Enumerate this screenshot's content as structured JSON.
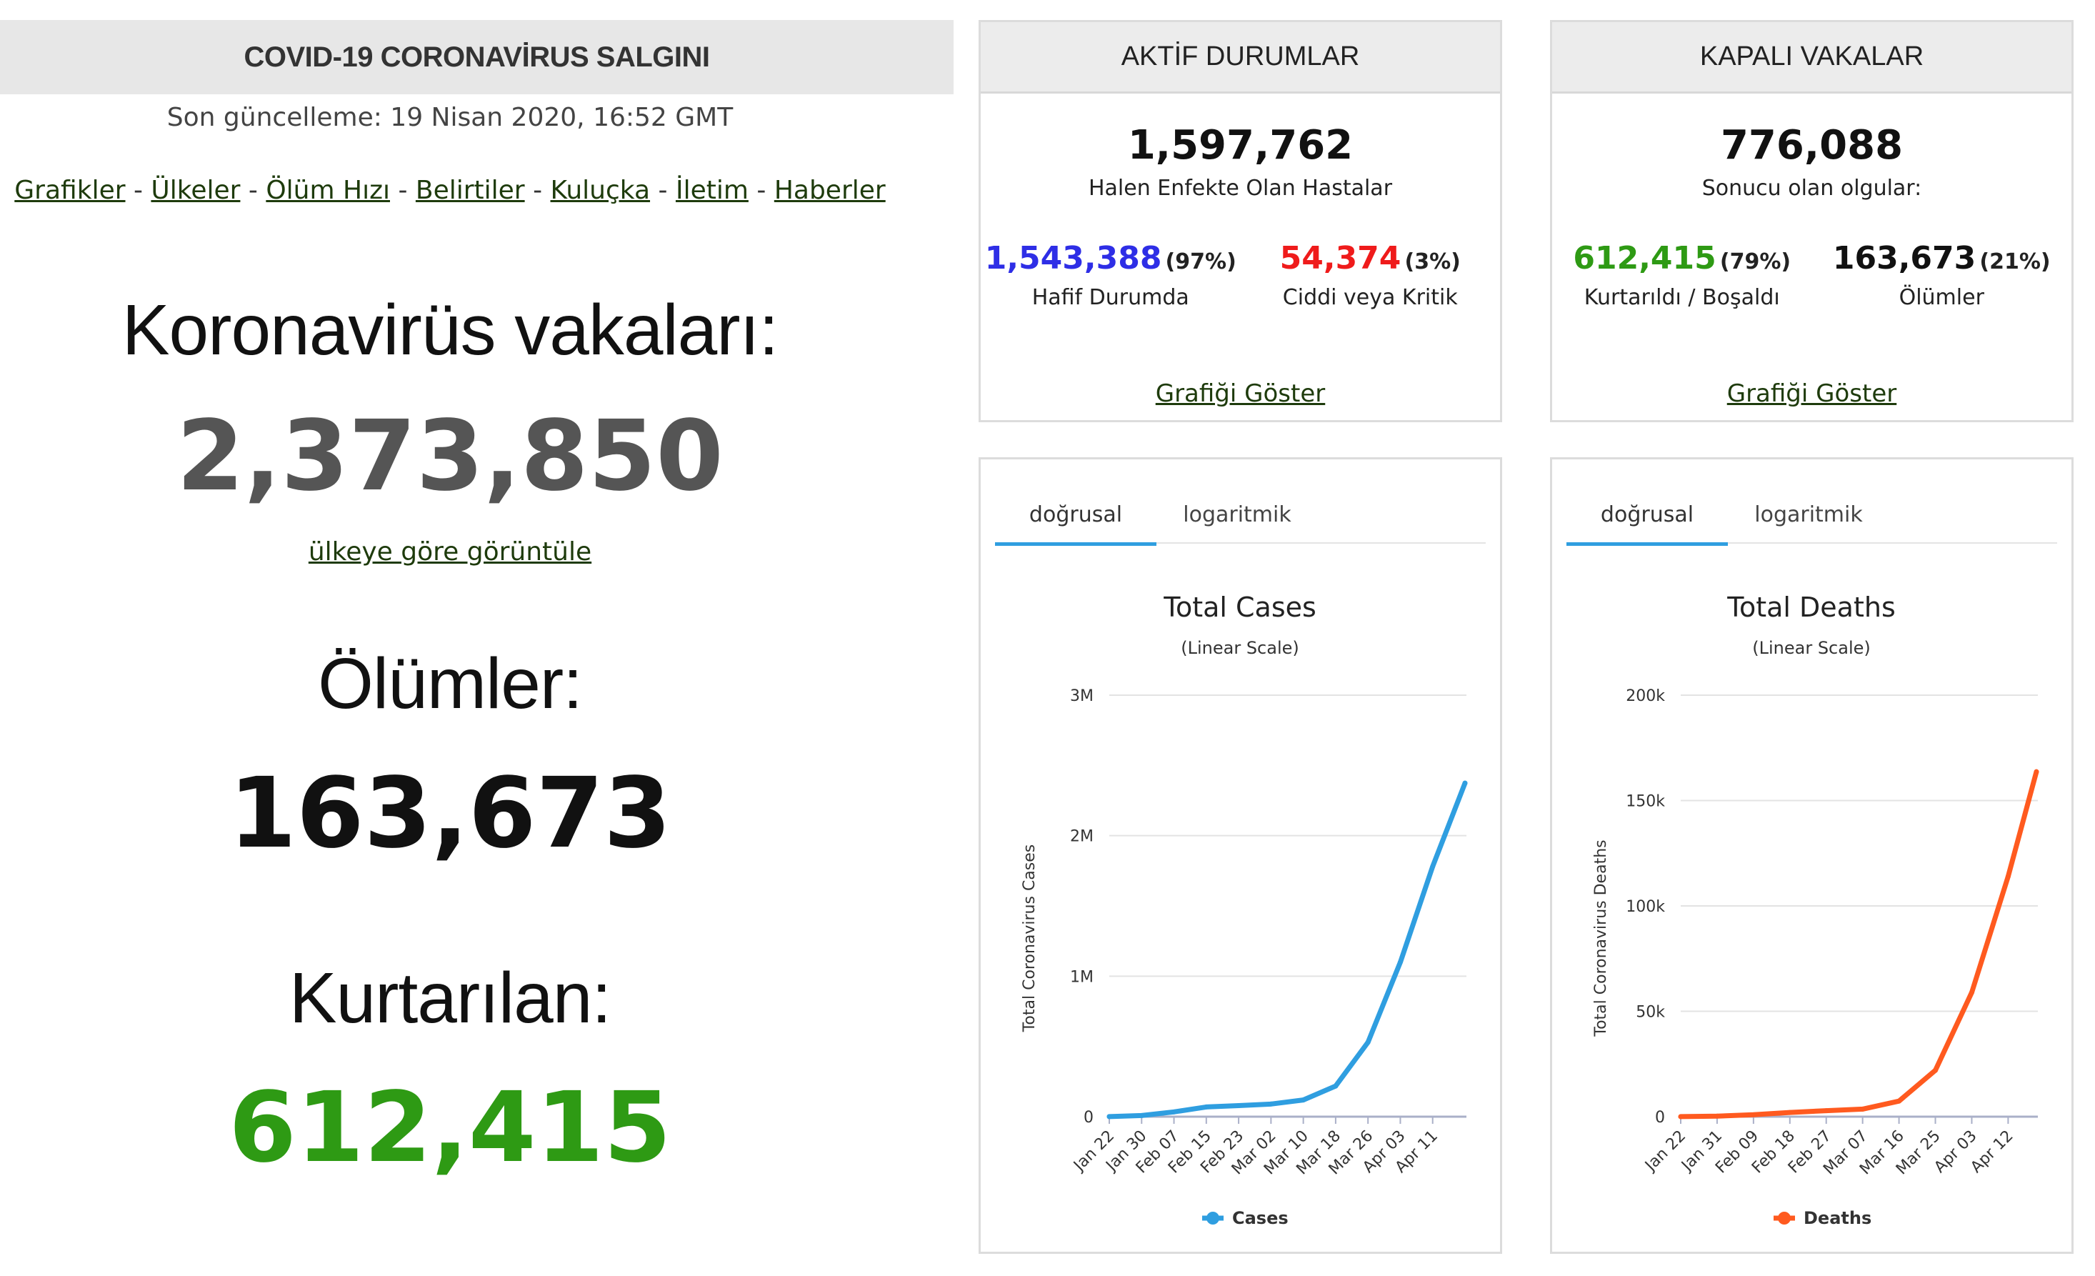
{
  "header": {
    "title": "COVID-19 CORONAVİRUS SALGINI"
  },
  "last_update": "Son güncelleme: 19 Nisan 2020, 16:52 GMT",
  "nav": [
    "Grafikler",
    "Ülkeler",
    "Ölüm Hızı",
    "Belirtiler",
    "Kuluçka",
    "İletim",
    "Haberler"
  ],
  "nav_separator": "-",
  "cases": {
    "label": "Koronavirüs vakaları:",
    "value": "2,373,850",
    "link": "ülkeye göre görüntüle"
  },
  "deaths": {
    "label": "Ölümler:",
    "value": "163,673"
  },
  "recovered": {
    "label": "Kurtarılan:",
    "value": "612,415"
  },
  "active": {
    "title": "AKTİF DURUMLAR",
    "value": "1,597,762",
    "sub": "Halen Enfekte Olan Hastalar",
    "mild_value": "1,543,388",
    "mild_pct": "(97%)",
    "mild_label": "Hafif Durumda",
    "serious_value": "54,374",
    "serious_pct": "(3%)",
    "serious_label": "Ciddi veya Kritik",
    "link": "Grafiği Göster"
  },
  "closed": {
    "title": "KAPALI VAKALAR",
    "value": "776,088",
    "sub": "Sonucu olan olgular:",
    "rec_value": "612,415",
    "rec_pct": "(79%)",
    "rec_label": "Kurtarıldı / Boşaldı",
    "death_value": "163,673",
    "death_pct": "(21%)",
    "death_label": "Ölümler",
    "link": "Grafiği Göster"
  },
  "tabs": {
    "linear": "doğrusal",
    "log": "logaritmik"
  },
  "colors": {
    "cases": "#2f9ee0",
    "deaths": "#ff5a1f",
    "mild": "#2e2ee6",
    "serious": "#ef1b1b",
    "recovered": "#2e9a14"
  },
  "chart_data": [
    {
      "type": "line",
      "title": "Total Cases",
      "subtitle": "(Linear Scale)",
      "ylabel": "Total Coronavirus Cases",
      "x_ticks": [
        "Jan 22",
        "Jan 30",
        "Feb 07",
        "Feb 15",
        "Feb 23",
        "Mar 02",
        "Mar 10",
        "Mar 18",
        "Mar 26",
        "Apr 03",
        "Apr 11"
      ],
      "y_ticks": [
        0,
        1000000,
        2000000,
        3000000
      ],
      "y_tick_labels": [
        "0",
        "1M",
        "2M",
        "3M"
      ],
      "ylim": [
        0,
        3000000
      ],
      "legend": "bottom",
      "series": [
        {
          "name": "Cases",
          "color": "#2f9ee0",
          "points": [
            [
              "Jan 22",
              580
            ],
            [
              "Jan 30",
              8200
            ],
            [
              "Feb 07",
              34000
            ],
            [
              "Feb 15",
              69000
            ],
            [
              "Feb 23",
              79000
            ],
            [
              "Mar 02",
              90000
            ],
            [
              "Mar 10",
              119000
            ],
            [
              "Mar 18",
              218000
            ],
            [
              "Mar 26",
              530000
            ],
            [
              "Apr 03",
              1100000
            ],
            [
              "Apr 11",
              1780000
            ],
            [
              "Apr 19",
              2373850
            ]
          ]
        }
      ]
    },
    {
      "type": "line",
      "title": "Total Deaths",
      "subtitle": "(Linear Scale)",
      "ylabel": "Total Coronavirus Deaths",
      "x_ticks": [
        "Jan 22",
        "Jan 31",
        "Feb 09",
        "Feb 18",
        "Feb 27",
        "Mar 07",
        "Mar 16",
        "Mar 25",
        "Apr 03",
        "Apr 12"
      ],
      "y_ticks": [
        0,
        50000,
        100000,
        150000,
        200000
      ],
      "y_tick_labels": [
        "0",
        "50k",
        "100k",
        "150k",
        "200k"
      ],
      "ylim": [
        0,
        200000
      ],
      "legend": "bottom",
      "series": [
        {
          "name": "Deaths",
          "color": "#ff5a1f",
          "points": [
            [
              "Jan 22",
              17
            ],
            [
              "Jan 31",
              259
            ],
            [
              "Feb 09",
              910
            ],
            [
              "Feb 18",
              2004
            ],
            [
              "Feb 27",
              2858
            ],
            [
              "Mar 07",
              3600
            ],
            [
              "Mar 16",
              7400
            ],
            [
              "Mar 25",
              22000
            ],
            [
              "Apr 03",
              59000
            ],
            [
              "Apr 12",
              114000
            ],
            [
              "Apr 19",
              163673
            ]
          ]
        }
      ]
    }
  ]
}
